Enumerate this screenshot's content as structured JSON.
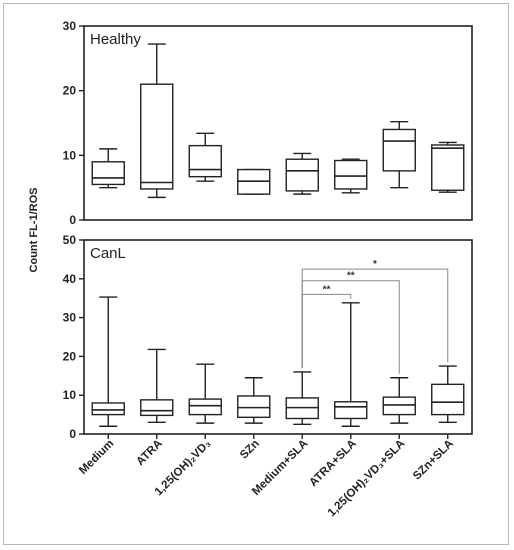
{
  "chart_data": [
    {
      "type": "boxplot",
      "panel_label": "Healthy",
      "ylim": [
        0,
        30
      ],
      "yticks": [
        0,
        10,
        20,
        30
      ],
      "categories": [
        "Medium",
        "ATRA",
        "1,25(OH)₂VD₃",
        "SZn",
        "Medium+SLA",
        "ATRA+SLA",
        "1,25(OH)₂VD₃+SLA",
        "SZn+SLA"
      ],
      "boxes": [
        {
          "min": 5.0,
          "q1": 5.5,
          "median": 6.5,
          "q3": 9.0,
          "max": 11.0
        },
        {
          "min": 3.5,
          "q1": 4.8,
          "median": 5.8,
          "q3": 21.0,
          "max": 27.2
        },
        {
          "min": 6.0,
          "q1": 6.7,
          "median": 7.8,
          "q3": 11.5,
          "max": 13.4
        },
        {
          "min": 4.0,
          "q1": 4.0,
          "median": 6.0,
          "q3": 7.8,
          "max": 7.8
        },
        {
          "min": 4.0,
          "q1": 4.5,
          "median": 7.6,
          "q3": 9.4,
          "max": 10.3
        },
        {
          "min": 4.2,
          "q1": 4.8,
          "median": 6.8,
          "q3": 9.2,
          "max": 9.4
        },
        {
          "min": 5.0,
          "q1": 7.6,
          "median": 12.2,
          "q3": 14.0,
          "max": 15.2
        },
        {
          "min": 4.3,
          "q1": 4.6,
          "median": 11.1,
          "q3": 11.6,
          "max": 12.0
        }
      ]
    },
    {
      "type": "boxplot",
      "panel_label": "CanL",
      "ylim": [
        0,
        50
      ],
      "yticks": [
        0,
        10,
        20,
        30,
        40,
        50
      ],
      "ylabel": "Count FL-1/ROS",
      "categories": [
        "Medium",
        "ATRA",
        "1,25(OH)₂VD₃",
        "SZn",
        "Medium+SLA",
        "ATRA+SLA",
        "1,25(OH)₂VD₃+SLA",
        "SZn+SLA"
      ],
      "boxes": [
        {
          "min": 2.0,
          "q1": 5.0,
          "median": 6.2,
          "q3": 8.0,
          "max": 35.3
        },
        {
          "min": 3.0,
          "q1": 4.8,
          "median": 6.0,
          "q3": 8.8,
          "max": 21.8
        },
        {
          "min": 2.8,
          "q1": 5.0,
          "median": 7.3,
          "q3": 9.0,
          "max": 18.0
        },
        {
          "min": 2.8,
          "q1": 4.3,
          "median": 6.8,
          "q3": 9.8,
          "max": 14.5
        },
        {
          "min": 2.5,
          "q1": 4.0,
          "median": 6.8,
          "q3": 9.3,
          "max": 16.0
        },
        {
          "min": 2.0,
          "q1": 4.0,
          "median": 7.0,
          "q3": 8.3,
          "max": 33.8
        },
        {
          "min": 2.8,
          "q1": 5.0,
          "median": 7.5,
          "q3": 9.5,
          "max": 14.5
        },
        {
          "min": 3.0,
          "q1": 5.0,
          "median": 8.2,
          "q3": 12.8,
          "max": 17.5
        }
      ],
      "significance": [
        {
          "from": "Medium+SLA",
          "to": "ATRA+SLA",
          "label": "**",
          "y": 36
        },
        {
          "from": "Medium+SLA",
          "to": "1,25(OH)₂VD₃+SLA",
          "label": "**",
          "y": 39.5
        },
        {
          "from": "Medium+SLA",
          "to": "SZn+SLA",
          "label": "*",
          "y": 42.5
        }
      ]
    }
  ]
}
